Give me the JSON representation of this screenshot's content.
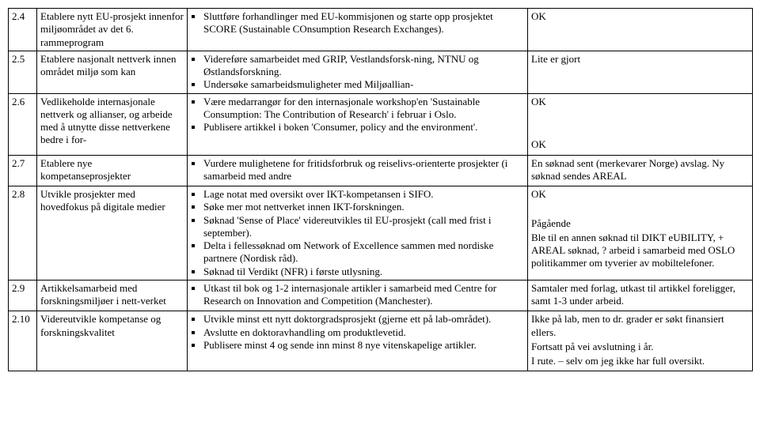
{
  "rows": [
    {
      "num": "2.4",
      "desc": "Etablere nytt EU-prosjekt innenfor miljøområdet av det 6. rammeprogram",
      "bullets": [
        "Sluttføre forhandlinger med EU-kommisjonen og starte opp prosjektet SCORE (Sustainable COnsumption Research Exchanges)."
      ],
      "status": [
        "OK"
      ]
    },
    {
      "num": "2.5",
      "desc": "Etablere nasjonalt nettverk innen området miljø som kan",
      "bullets": [
        "Videreføre samarbeidet med GRIP, Vestlandsforsk-ning, NTNU og Østlandsforskning.",
        "Undersøke samarbeidsmuligheter med Miljøallian-"
      ],
      "status": [
        "Lite er gjort"
      ]
    },
    {
      "num": "2.6",
      "desc": "Vedlikeholde internasjonale nettverk og allianser, og arbeide med å utnytte disse nettverkene bedre i for-",
      "bullets": [
        "Være medarrangør for den internasjonale workshop'en 'Sustainable Consumption: The Contribution of Research' i februar i Oslo.",
        "Publisere artikkel i boken 'Consumer, policy and the environment'."
      ],
      "status": [
        "OK",
        "",
        "",
        "OK"
      ]
    },
    {
      "num": "2.7",
      "desc": "Etablere nye kompetanseprosjekter",
      "bullets": [
        "Vurdere mulighetene for fritidsforbruk og reiselivs-orienterte prosjekter (i samarbeid med andre"
      ],
      "status": [
        "En søknad sent (merkevarer Norge) avslag. Ny søknad sendes AREAL"
      ]
    },
    {
      "num": "2.8",
      "desc": "Utvikle prosjekter med hovedfokus på digitale medier",
      "bullets": [
        "Lage notat med oversikt over IKT-kompetansen i SIFO.",
        "Søke mer mot nettverket innen IKT-forskningen.",
        "Søknad 'Sense of Place' videreutvikles til EU-prosjekt (call med frist i september).",
        "Delta i fellessøknad om Network of Excellence sammen med nordiske partnere (Nordisk råd).",
        "Søknad til Verdikt (NFR) i første utlysning."
      ],
      "status": [
        "OK",
        "",
        "Pågående",
        "Ble til en annen søknad til DIKT eUBILITY, + AREAL søknad, ? arbeid i samarbeid med OSLO politikammer om tyverier av mobiltelefoner."
      ]
    },
    {
      "num": "2.9",
      "desc": "Artikkelsamarbeid med forskningsmiljøer i nett-verket",
      "bullets": [
        "Utkast til bok og 1-2 internasjonale artikler i samarbeid med Centre for Research on Innovation and Competition (Manchester)."
      ],
      "status": [
        "Samtaler med forlag, utkast til artikkel foreligger, samt 1-3 under arbeid."
      ]
    },
    {
      "num": "2.10",
      "desc": "Videreutvikle kompetanse og forskningskvalitet",
      "bullets": [
        "Utvikle minst ett nytt doktorgradsprosjekt (gjerne ett på lab-området).",
        "Avslutte en doktoravhandling om produktlevetid.",
        "Publisere minst 4 og sende inn minst 8 nye vitenskapelige artikler."
      ],
      "status": [
        "Ikke på lab, men to dr. grader er søkt finansiert ellers.",
        "Fortsatt på vei avslutning i år.",
        "I rute. – selv om jeg ikke har full oversikt."
      ]
    }
  ]
}
